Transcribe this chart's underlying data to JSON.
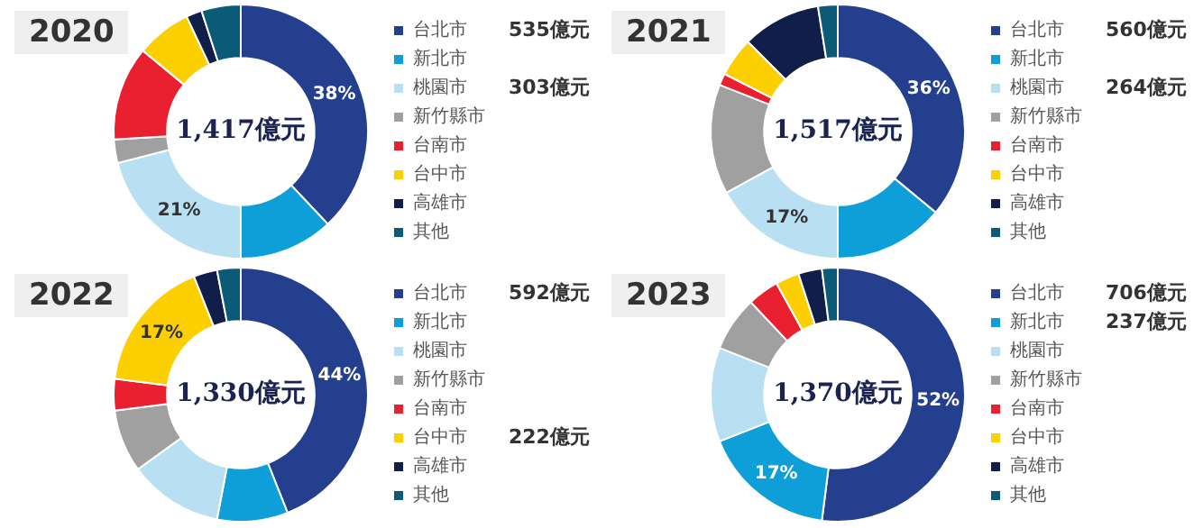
{
  "chart_data": [
    {
      "type": "donut",
      "title": "2020",
      "categories": [
        "台北市",
        "新北市",
        "桃園市",
        "新竹縣市",
        "台南市",
        "台中市",
        "高雄市",
        "其他"
      ],
      "values": [
        38,
        12,
        21,
        3,
        12,
        7,
        2,
        5
      ],
      "colors": [
        "#253f8f",
        "#0f9fd8",
        "#b9e0f2",
        "#a0a0a0",
        "#e8202f",
        "#fcd000",
        "#111e4a",
        "#0b5a78"
      ],
      "value_labels": [
        "38%",
        null,
        "21%",
        null,
        null,
        null,
        null,
        null
      ],
      "legend": "right",
      "annotations": [
        "1,417億元",
        {
          "text": "535億元",
          "x": "台北市"
        },
        {
          "text": "303億元",
          "x": "桃園市"
        }
      ]
    },
    {
      "type": "donut",
      "title": "2021",
      "categories": [
        "台北市",
        "新北市",
        "桃園市",
        "新竹縣市",
        "台南市",
        "台中市",
        "高雄市",
        "其他"
      ],
      "values": [
        36,
        14,
        17,
        14,
        1.5,
        5,
        10,
        2.5
      ],
      "colors": [
        "#253f8f",
        "#0f9fd8",
        "#b9e0f2",
        "#a0a0a0",
        "#e8202f",
        "#fcd000",
        "#111e4a",
        "#0b5a78"
      ],
      "value_labels": [
        "36%",
        null,
        "17%",
        null,
        null,
        null,
        null,
        null
      ],
      "legend": "right",
      "annotations": [
        "1,517億元",
        {
          "text": "560億元",
          "x": "台北市"
        },
        {
          "text": "264億元",
          "x": "桃園市"
        }
      ]
    },
    {
      "type": "donut",
      "title": "2022",
      "categories": [
        "台北市",
        "新北市",
        "桃園市",
        "新竹縣市",
        "台南市",
        "台中市",
        "高雄市",
        "其他"
      ],
      "values": [
        44,
        9,
        12,
        8,
        4,
        17,
        3,
        3
      ],
      "colors": [
        "#253f8f",
        "#0f9fd8",
        "#b9e0f2",
        "#a0a0a0",
        "#e8202f",
        "#fcd000",
        "#111e4a",
        "#0b5a78"
      ],
      "value_labels": [
        "44%",
        null,
        null,
        null,
        null,
        "17%",
        null,
        null
      ],
      "legend": "right",
      "annotations": [
        "1,330億元",
        {
          "text": "592億元",
          "x": "台北市"
        },
        {
          "text": "222億元",
          "x": "台中市"
        }
      ]
    },
    {
      "type": "donut",
      "title": "2023",
      "categories": [
        "台北市",
        "新北市",
        "桃園市",
        "新竹縣市",
        "台南市",
        "台中市",
        "高雄市",
        "其他"
      ],
      "values": [
        52,
        17,
        12,
        7,
        4,
        3,
        3,
        2
      ],
      "colors": [
        "#253f8f",
        "#0f9fd8",
        "#b9e0f2",
        "#a0a0a0",
        "#e8202f",
        "#fcd000",
        "#111e4a",
        "#0b5a78"
      ],
      "value_labels": [
        "52%",
        "17%",
        null,
        null,
        null,
        null,
        null,
        null
      ],
      "legend": "right",
      "annotations": [
        "1,370億元",
        {
          "text": "706億元",
          "x": "台北市"
        },
        {
          "text": "237億元",
          "x": "新北市"
        }
      ]
    }
  ]
}
